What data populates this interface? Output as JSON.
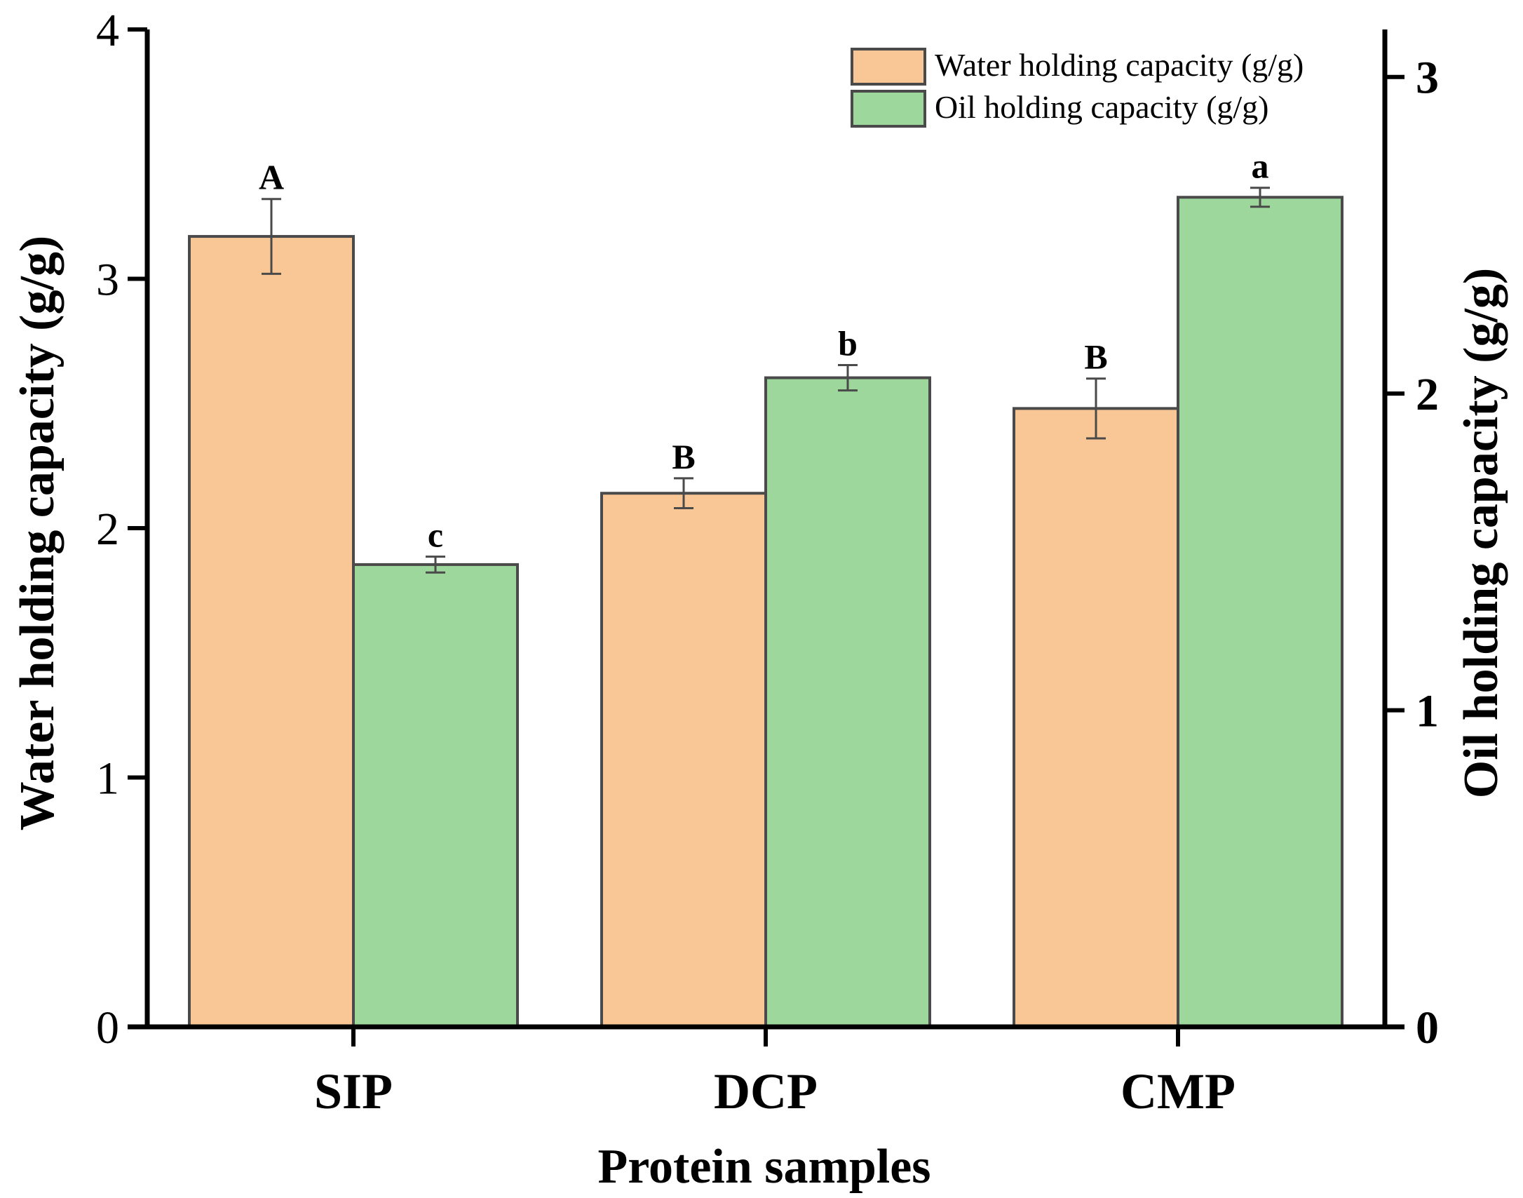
{
  "chart_data": {
    "type": "bar",
    "title": "",
    "xlabel": "Protein samples",
    "ylabel": "Water holding capacity (g/g)",
    "ylabel_right": "Oil holding capacity (g/g)",
    "categories": [
      "SIP",
      "DCP",
      "CMP"
    ],
    "ylim": [
      0,
      4
    ],
    "ylim_right": [
      0,
      3.15
    ],
    "yticks": [
      "0",
      "1",
      "2",
      "3",
      "4"
    ],
    "yticks_right": [
      "0",
      "1",
      "2",
      "3"
    ],
    "grid": false,
    "legend_position": "top-right",
    "series": [
      {
        "name": "Water holding capacity (g/g)",
        "axis": "left",
        "color": "#f9c795",
        "values": [
          3.17,
          2.14,
          2.48
        ],
        "errors": [
          0.15,
          0.06,
          0.12
        ],
        "labels": [
          "A",
          "B",
          "B"
        ]
      },
      {
        "name": "Oil holding capacity (g/g)",
        "axis": "right",
        "color": "#9ed79c",
        "values": [
          1.46,
          2.05,
          2.62
        ],
        "errors": [
          0.025,
          0.04,
          0.03
        ],
        "labels": [
          "c",
          "b",
          "a"
        ]
      }
    ]
  }
}
